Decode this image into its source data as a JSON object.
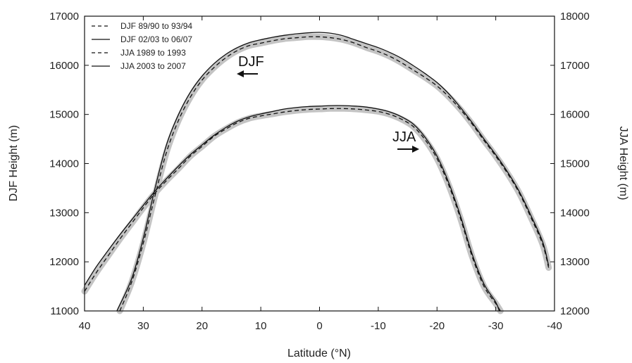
{
  "chart_data": {
    "type": "line",
    "xlabel": "Latitude (°N)",
    "ylabel_left": "DJF Height (m)",
    "ylabel_right": "JJA Height (m)",
    "xlim": [
      40,
      -40
    ],
    "ylim_left": [
      11000,
      17000
    ],
    "ylim_right": [
      12000,
      18000
    ],
    "x_ticks": [
      "40",
      "30",
      "20",
      "10",
      "0",
      "-10",
      "-20",
      "-30",
      "-40"
    ],
    "y_ticks_left": [
      "11000",
      "12000",
      "13000",
      "14000",
      "15000",
      "16000",
      "17000"
    ],
    "y_ticks_right": [
      "12000",
      "13000",
      "14000",
      "15000",
      "16000",
      "17000",
      "18000"
    ],
    "legend": [
      {
        "label": "DJF 89/90 to 93/94",
        "style": "dashed"
      },
      {
        "label": "DJF 02/03 to 06/07",
        "style": "solid"
      },
      {
        "label": "JJA 1989 to 1993",
        "style": "dashed"
      },
      {
        "label": "JJA 2003 to 2007",
        "style": "solid"
      }
    ],
    "legend_position": "top-left",
    "annotations": [
      {
        "text": "DJF",
        "arrow": "left",
        "x": 13,
        "y": 16000
      },
      {
        "text": "JJA",
        "arrow": "right",
        "x": -15,
        "y": 14950
      }
    ],
    "series": [
      {
        "name": "DJF 89/90 to 93/94",
        "axis": "left",
        "style": "dashed",
        "x": [
          34,
          32,
          30,
          28,
          26,
          24,
          22,
          20,
          18,
          16,
          14,
          12,
          10,
          8,
          6,
          4,
          2,
          0,
          -2,
          -4,
          -6,
          -8,
          -10,
          -12,
          -14,
          -16,
          -18,
          -20,
          -22,
          -24,
          -26,
          -28,
          -30,
          -32,
          -34,
          -36,
          -38,
          -39
        ],
        "y": [
          11000,
          11580,
          12380,
          13350,
          14250,
          14880,
          15350,
          15700,
          15950,
          16150,
          16300,
          16400,
          16450,
          16500,
          16540,
          16560,
          16580,
          16580,
          16560,
          16520,
          16450,
          16360,
          16280,
          16180,
          16050,
          15900,
          15750,
          15580,
          15360,
          15100,
          14800,
          14470,
          14150,
          13800,
          13400,
          12900,
          12350,
          11880
        ]
      },
      {
        "name": "DJF 02/03 to 06/07",
        "axis": "left",
        "style": "solid",
        "x": [
          34.5,
          32,
          30,
          28,
          26,
          24,
          22,
          20,
          18,
          16,
          14,
          12,
          10,
          8,
          6,
          4,
          2,
          0,
          -2,
          -4,
          -6,
          -8,
          -10,
          -12,
          -14,
          -16,
          -18,
          -20,
          -22,
          -24,
          -26,
          -28,
          -30,
          -32,
          -34,
          -36,
          -38,
          -39
        ],
        "y": [
          11000,
          11650,
          12480,
          13500,
          14400,
          15000,
          15450,
          15780,
          16030,
          16220,
          16360,
          16460,
          16520,
          16570,
          16610,
          16640,
          16660,
          16670,
          16650,
          16600,
          16520,
          16440,
          16360,
          16260,
          16140,
          15990,
          15830,
          15650,
          15420,
          15140,
          14830,
          14500,
          14180,
          13830,
          13430,
          12940,
          12400,
          11920
        ]
      },
      {
        "name": "JJA 1989 to 1993",
        "axis": "right",
        "style": "dashed",
        "x": [
          40,
          38,
          36,
          34,
          32,
          30,
          28,
          26,
          24,
          22,
          20,
          18,
          16,
          14,
          12,
          10,
          8,
          6,
          4,
          2,
          0,
          -2,
          -4,
          -6,
          -8,
          -10,
          -12,
          -14,
          -16,
          -18,
          -20,
          -22,
          -24,
          -26,
          -28,
          -30,
          -30.8
        ],
        "y": [
          12400,
          12780,
          13120,
          13460,
          13780,
          14100,
          14400,
          14660,
          14900,
          15150,
          15350,
          15550,
          15700,
          15830,
          15920,
          15970,
          16010,
          16050,
          16080,
          16100,
          16110,
          16120,
          16120,
          16110,
          16090,
          16060,
          16000,
          15900,
          15750,
          15480,
          15100,
          14560,
          13880,
          13100,
          12500,
          12150,
          12000
        ]
      },
      {
        "name": "JJA 2003 to 2007",
        "axis": "right",
        "style": "solid",
        "x": [
          40,
          38,
          36,
          34,
          32,
          30,
          28,
          26,
          24,
          22,
          20,
          18,
          16,
          14,
          12,
          10,
          8,
          6,
          4,
          2,
          0,
          -2,
          -4,
          -6,
          -8,
          -10,
          -12,
          -14,
          -16,
          -18,
          -20,
          -22,
          -24,
          -26,
          -28,
          -30,
          -30.6
        ],
        "y": [
          12520,
          12900,
          13230,
          13550,
          13850,
          14150,
          14440,
          14700,
          14950,
          15180,
          15380,
          15570,
          15730,
          15860,
          15950,
          16010,
          16060,
          16110,
          16140,
          16160,
          16170,
          16180,
          16180,
          16170,
          16150,
          16110,
          16050,
          15950,
          15800,
          15530,
          15150,
          14610,
          13930,
          13150,
          12550,
          12180,
          12000
        ]
      }
    ]
  }
}
